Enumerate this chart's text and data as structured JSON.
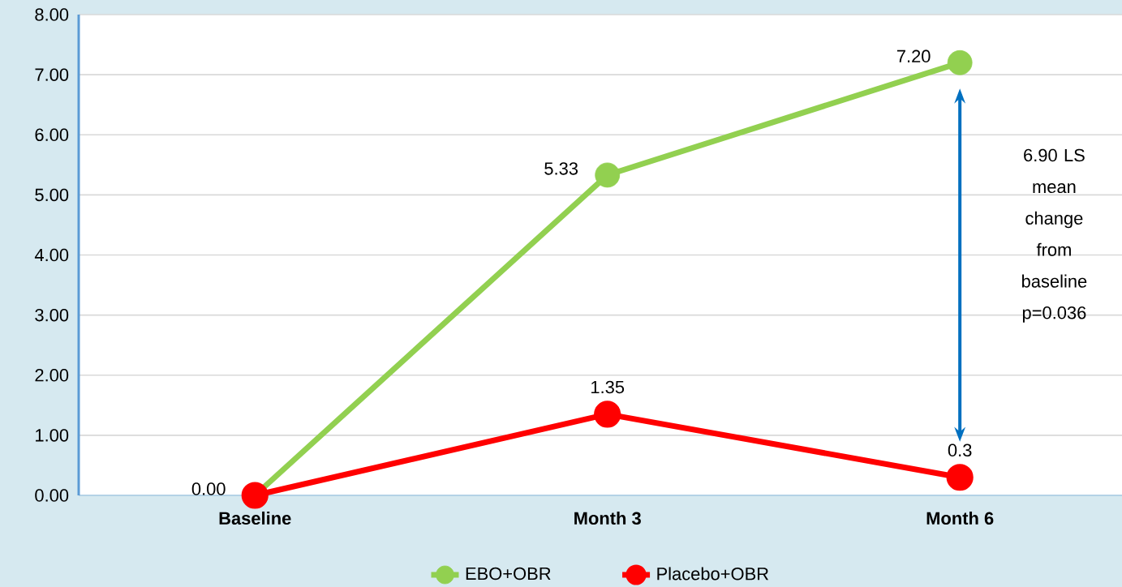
{
  "chart_data": {
    "type": "line",
    "categories": [
      "Baseline",
      "Month 3",
      "Month 6"
    ],
    "series": [
      {
        "name": "EBO+OBR",
        "color": "#92d050",
        "values": [
          0.0,
          5.33,
          7.2
        ],
        "value_labels": [
          "0.00",
          "5.33",
          "7.20"
        ]
      },
      {
        "name": "Placebo+OBR",
        "color": "#ff0000",
        "values": [
          0.0,
          1.35,
          0.3
        ],
        "value_labels": [
          null,
          "1.35",
          "0.3"
        ]
      }
    ],
    "ylim": [
      0,
      8
    ],
    "yticks": [
      {
        "value": 0,
        "label": "0.00"
      },
      {
        "value": 1,
        "label": "1.00"
      },
      {
        "value": 2,
        "label": "2.00"
      },
      {
        "value": 3,
        "label": "3.00"
      },
      {
        "value": 4,
        "label": "4.00"
      },
      {
        "value": 5,
        "label": "5.00"
      },
      {
        "value": 6,
        "label": "6.00"
      },
      {
        "value": 7,
        "label": "7.00"
      },
      {
        "value": 8,
        "label": "8.00"
      }
    ],
    "grid": "y",
    "legend": "bottom",
    "marker": "circle",
    "line_style": "solid",
    "annotations": [
      "6.90 LS mean change from baseline p=0.036"
    ]
  }
}
